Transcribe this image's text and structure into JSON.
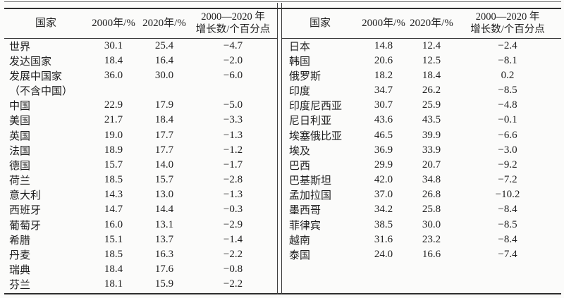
{
  "meta": {
    "description_label": "两栏国家统计数据表",
    "text_color": "#1e1e1e",
    "rule_color": "#2e2e2e",
    "background_color": "#fbfbfa"
  },
  "headers": {
    "country": "国家",
    "y2000": "2000年/%",
    "y2020": "2020年/%",
    "growth_line1": "2000—2020 年",
    "growth_line2": "增长数/个百分点"
  },
  "tables": {
    "left": {
      "rows": [
        {
          "country": "世界",
          "y2000": "30.1",
          "y2020": "25.4",
          "growth": "−4.7"
        },
        {
          "country": "发达国家",
          "y2000": "18.4",
          "y2020": "16.4",
          "growth": "−2.0"
        },
        {
          "country": "发展中国家",
          "y2000": "36.0",
          "y2020": "30.0",
          "growth": "−6.0"
        },
        {
          "country": "（不含中国）",
          "y2000": "",
          "y2020": "",
          "growth": ""
        },
        {
          "country": "中国",
          "y2000": "22.9",
          "y2020": "17.9",
          "growth": "−5.0"
        },
        {
          "country": "美国",
          "y2000": "21.7",
          "y2020": "18.4",
          "growth": "−3.3"
        },
        {
          "country": "英国",
          "y2000": "19.0",
          "y2020": "17.7",
          "growth": "−1.3"
        },
        {
          "country": "法国",
          "y2000": "18.9",
          "y2020": "17.7",
          "growth": "−1.2"
        },
        {
          "country": "德国",
          "y2000": "15.7",
          "y2020": "14.0",
          "growth": "−1.7"
        },
        {
          "country": "荷兰",
          "y2000": "18.5",
          "y2020": "15.7",
          "growth": "−2.8"
        },
        {
          "country": "意大利",
          "y2000": "14.3",
          "y2020": "13.0",
          "growth": "−1.3"
        },
        {
          "country": "西班牙",
          "y2000": "14.7",
          "y2020": "14.4",
          "growth": "−0.3"
        },
        {
          "country": "葡萄牙",
          "y2000": "16.0",
          "y2020": "13.1",
          "growth": "−2.9"
        },
        {
          "country": "希腊",
          "y2000": "15.1",
          "y2020": "13.7",
          "growth": "−1.4"
        },
        {
          "country": "丹麦",
          "y2000": "18.5",
          "y2020": "16.3",
          "growth": "−2.2"
        },
        {
          "country": "瑞典",
          "y2000": "18.4",
          "y2020": "17.6",
          "growth": "−0.8"
        },
        {
          "country": "芬兰",
          "y2000": "18.1",
          "y2020": "15.9",
          "growth": "−2.2"
        }
      ]
    },
    "right": {
      "rows": [
        {
          "country": "日本",
          "y2000": "14.8",
          "y2020": "12.4",
          "growth": "−2.4"
        },
        {
          "country": "韩国",
          "y2000": "20.6",
          "y2020": "12.5",
          "growth": "−8.1"
        },
        {
          "country": "俄罗斯",
          "y2000": "18.2",
          "y2020": "18.4",
          "growth": "0.2"
        },
        {
          "country": "印度",
          "y2000": "34.7",
          "y2020": "26.2",
          "growth": "−8.5"
        },
        {
          "country": "印度尼西亚",
          "y2000": "30.7",
          "y2020": "25.9",
          "growth": "−4.8"
        },
        {
          "country": "尼日利亚",
          "y2000": "43.6",
          "y2020": "43.5",
          "growth": "−0.1"
        },
        {
          "country": "埃塞俄比亚",
          "y2000": "46.5",
          "y2020": "39.9",
          "growth": "−6.6"
        },
        {
          "country": "埃及",
          "y2000": "36.9",
          "y2020": "33.9",
          "growth": "−3.0"
        },
        {
          "country": "巴西",
          "y2000": "29.9",
          "y2020": "20.7",
          "growth": "−9.2"
        },
        {
          "country": "巴基斯坦",
          "y2000": "42.0",
          "y2020": "34.8",
          "growth": "−7.2"
        },
        {
          "country": "孟加拉国",
          "y2000": "37.0",
          "y2020": "26.8",
          "growth": "−10.2"
        },
        {
          "country": "墨西哥",
          "y2000": "34.2",
          "y2020": "25.8",
          "growth": "−8.4"
        },
        {
          "country": "菲律宾",
          "y2000": "38.5",
          "y2020": "30.0",
          "growth": "−8.5"
        },
        {
          "country": "越南",
          "y2000": "31.6",
          "y2020": "23.2",
          "growth": "−8.4"
        },
        {
          "country": "泰国",
          "y2000": "24.0",
          "y2020": "16.6",
          "growth": "−7.4"
        }
      ]
    }
  }
}
